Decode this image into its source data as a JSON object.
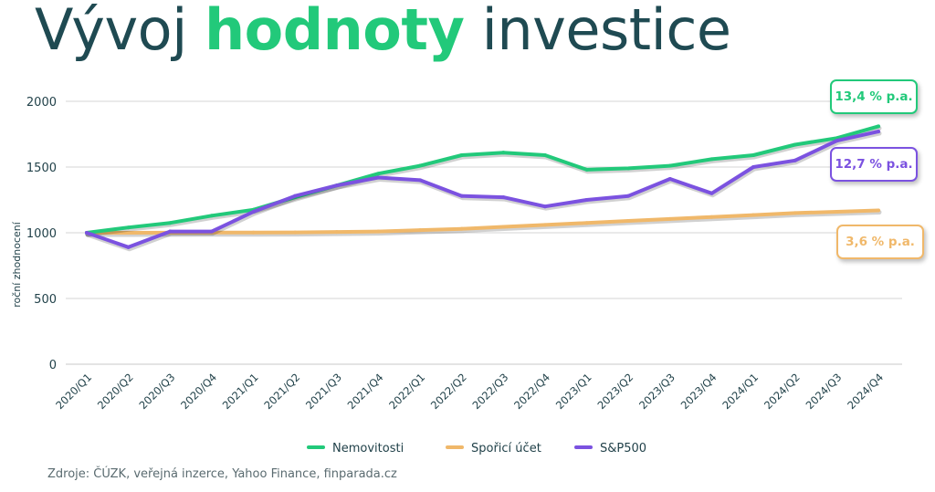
{
  "title": {
    "part1": "Vývoj",
    "part2": "hodnoty",
    "part3": "investice"
  },
  "source": "Zdroje: ČÚZK, veřejná inzerce, Yahoo Finance, finparada.cz",
  "badges": [
    {
      "text": "13,4 % p.a.",
      "color": "#22c97a"
    },
    {
      "text": "12,7 % p.a.",
      "color": "#7b52e0"
    },
    {
      "text": "3,6 % p.a.",
      "color": "#f0b86a"
    }
  ],
  "chart_data": {
    "type": "line",
    "title": "",
    "xlabel": "",
    "ylabel": "roční zhodnocení",
    "ylim": [
      0,
      2000
    ],
    "yticks": [
      0,
      500,
      1000,
      1500,
      2000
    ],
    "grid": true,
    "legend_position": "bottom",
    "categories": [
      "2020/Q1",
      "2020/Q2",
      "2020/Q3",
      "2020/Q4",
      "2021/Q1",
      "2021/Q2",
      "2021/Q3",
      "2021/Q4",
      "2022/Q1",
      "2022/Q2",
      "2022/Q3",
      "2022/Q4",
      "2023/Q1",
      "2023/Q2",
      "2023/Q3",
      "2023/Q4",
      "2024/Q1",
      "2024/Q2",
      "2024/Q3",
      "2024/Q4"
    ],
    "series": [
      {
        "name": "Nemovitosti",
        "color": "#22c97a",
        "values": [
          1000,
          1040,
          1075,
          1130,
          1175,
          1270,
          1360,
          1450,
          1510,
          1590,
          1610,
          1590,
          1480,
          1490,
          1510,
          1560,
          1590,
          1670,
          1720,
          1810
        ]
      },
      {
        "name": "Spořicí účet",
        "color": "#f0b86a",
        "values": [
          1000,
          1000,
          1001,
          1002,
          1002,
          1003,
          1006,
          1010,
          1020,
          1030,
          1045,
          1060,
          1075,
          1090,
          1105,
          1120,
          1135,
          1150,
          1160,
          1170
        ]
      },
      {
        "name": "S&P500",
        "color": "#7b52e0",
        "values": [
          1000,
          890,
          1010,
          1010,
          1160,
          1280,
          1360,
          1420,
          1400,
          1280,
          1270,
          1200,
          1250,
          1280,
          1410,
          1300,
          1500,
          1550,
          1700,
          1770
        ]
      }
    ]
  }
}
